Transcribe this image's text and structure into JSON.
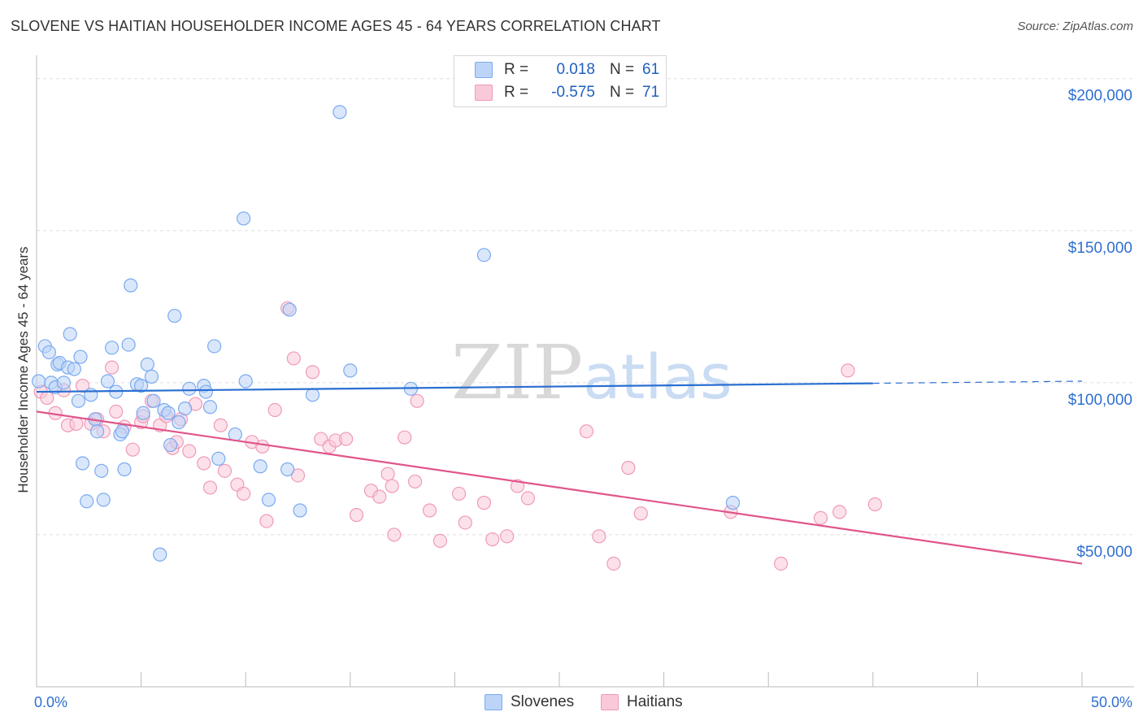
{
  "title": "SLOVENE VS HAITIAN HOUSEHOLDER INCOME AGES 45 - 64 YEARS CORRELATION CHART",
  "source": "Source: ZipAtlas.com",
  "watermark": {
    "zip": "ZIP",
    "atlas": "atlas"
  },
  "legend_top": {
    "rows": [
      {
        "r_label": "R =",
        "r_value": "0.018",
        "n_label": "N =",
        "n_value": "61",
        "color": "#7aaaf0",
        "fill": "#bcd4f7"
      },
      {
        "r_label": "R =",
        "r_value": "-0.575",
        "n_label": "N =",
        "n_value": "71",
        "color": "#f09ab8",
        "fill": "#f9c9d9"
      }
    ]
  },
  "legend_bottom": [
    {
      "label": "Slovenes",
      "color": "#7aaaf0",
      "fill": "#bcd4f7"
    },
    {
      "label": "Haitians",
      "color": "#f09ab8",
      "fill": "#f9c9d9"
    }
  ],
  "chart_data": {
    "type": "scatter",
    "title": "SLOVENE VS HAITIAN HOUSEHOLDER INCOME AGES 45 - 64 YEARS CORRELATION CHART",
    "xlabel": "",
    "ylabel": "Householder Income Ages 45 - 64 years",
    "xlim": [
      0,
      50
    ],
    "ylim": [
      0,
      205000
    ],
    "x_tick_labels": [
      "0.0%",
      "50.0%"
    ],
    "y_ticks": [
      50000,
      100000,
      150000,
      200000
    ],
    "y_tick_labels": [
      "$50,000",
      "$100,000",
      "$150,000",
      "$200,000"
    ],
    "grid": true,
    "legend_position": "top-center",
    "series": [
      {
        "name": "Slovenes",
        "color": "#7aaaf0",
        "fill": "#bcd4f7",
        "line_color": "#2a6fd1",
        "trend": {
          "x0": 0,
          "y0": 97000,
          "x1": 40,
          "y1": 99800,
          "dash_to_x": 50
        },
        "points": [
          [
            0.1,
            100500
          ],
          [
            0.4,
            112000
          ],
          [
            0.6,
            110000
          ],
          [
            0.7,
            100000
          ],
          [
            0.9,
            98500
          ],
          [
            1.0,
            106000
          ],
          [
            1.1,
            106500
          ],
          [
            1.3,
            100000
          ],
          [
            1.5,
            105000
          ],
          [
            1.6,
            116000
          ],
          [
            1.8,
            104500
          ],
          [
            2.0,
            94000
          ],
          [
            2.1,
            108500
          ],
          [
            2.2,
            73500
          ],
          [
            2.4,
            61000
          ],
          [
            2.6,
            96000
          ],
          [
            2.8,
            88000
          ],
          [
            2.9,
            84000
          ],
          [
            3.1,
            71000
          ],
          [
            3.2,
            61500
          ],
          [
            3.4,
            100500
          ],
          [
            3.6,
            111500
          ],
          [
            3.8,
            97000
          ],
          [
            4.0,
            83000
          ],
          [
            4.1,
            84000
          ],
          [
            4.2,
            71500
          ],
          [
            4.4,
            112500
          ],
          [
            4.5,
            132000
          ],
          [
            4.8,
            99500
          ],
          [
            5.0,
            99000
          ],
          [
            5.1,
            90000
          ],
          [
            5.3,
            106000
          ],
          [
            5.5,
            102000
          ],
          [
            5.6,
            94000
          ],
          [
            5.9,
            43500
          ],
          [
            6.1,
            91000
          ],
          [
            6.3,
            90000
          ],
          [
            6.4,
            79500
          ],
          [
            6.6,
            122000
          ],
          [
            6.8,
            87000
          ],
          [
            7.1,
            91500
          ],
          [
            7.3,
            98000
          ],
          [
            8.0,
            99000
          ],
          [
            8.1,
            97000
          ],
          [
            8.3,
            92000
          ],
          [
            8.5,
            112000
          ],
          [
            8.7,
            75000
          ],
          [
            9.5,
            83000
          ],
          [
            9.9,
            154000
          ],
          [
            10.0,
            100500
          ],
          [
            10.7,
            72500
          ],
          [
            11.1,
            61500
          ],
          [
            12.0,
            71500
          ],
          [
            12.1,
            124000
          ],
          [
            12.6,
            58000
          ],
          [
            13.2,
            96000
          ],
          [
            14.5,
            189000
          ],
          [
            15.0,
            104000
          ],
          [
            17.9,
            98000
          ],
          [
            21.4,
            142000
          ],
          [
            33.3,
            60500
          ]
        ]
      },
      {
        "name": "Haitians",
        "color": "#f09ab8",
        "fill": "#f9c9d9",
        "line_color": "#e0558a",
        "trend": {
          "x0": 0,
          "y0": 90500,
          "x1": 50,
          "y1": 40500
        },
        "points": [
          [
            0.2,
            97000
          ],
          [
            0.5,
            95000
          ],
          [
            0.9,
            90000
          ],
          [
            1.3,
            97500
          ],
          [
            1.5,
            86000
          ],
          [
            1.9,
            86500
          ],
          [
            2.2,
            99000
          ],
          [
            2.6,
            86500
          ],
          [
            2.9,
            88000
          ],
          [
            3.2,
            84000
          ],
          [
            3.6,
            105000
          ],
          [
            3.8,
            90500
          ],
          [
            4.2,
            85500
          ],
          [
            4.6,
            78000
          ],
          [
            5.0,
            87000
          ],
          [
            5.1,
            89000
          ],
          [
            5.5,
            94000
          ],
          [
            5.9,
            86000
          ],
          [
            6.2,
            89000
          ],
          [
            6.5,
            78500
          ],
          [
            6.7,
            80500
          ],
          [
            6.9,
            88000
          ],
          [
            7.3,
            77500
          ],
          [
            7.6,
            93000
          ],
          [
            8.0,
            73500
          ],
          [
            8.3,
            65500
          ],
          [
            8.8,
            86000
          ],
          [
            9.0,
            71000
          ],
          [
            9.6,
            66500
          ],
          [
            9.9,
            63500
          ],
          [
            10.3,
            80500
          ],
          [
            10.8,
            79000
          ],
          [
            11.0,
            54500
          ],
          [
            11.4,
            91000
          ],
          [
            12.0,
            124500
          ],
          [
            12.3,
            108000
          ],
          [
            12.5,
            69500
          ],
          [
            13.2,
            103500
          ],
          [
            13.6,
            81500
          ],
          [
            14.0,
            79000
          ],
          [
            14.3,
            81000
          ],
          [
            14.8,
            81500
          ],
          [
            15.3,
            56500
          ],
          [
            16.0,
            64500
          ],
          [
            16.4,
            62500
          ],
          [
            16.8,
            70000
          ],
          [
            17.0,
            66000
          ],
          [
            17.1,
            50000
          ],
          [
            17.6,
            82000
          ],
          [
            18.1,
            67500
          ],
          [
            18.2,
            94000
          ],
          [
            18.8,
            58000
          ],
          [
            19.3,
            48000
          ],
          [
            20.2,
            63500
          ],
          [
            20.5,
            54000
          ],
          [
            21.4,
            60500
          ],
          [
            21.8,
            48500
          ],
          [
            22.5,
            49500
          ],
          [
            23.0,
            66000
          ],
          [
            23.5,
            62000
          ],
          [
            26.3,
            84000
          ],
          [
            26.9,
            49500
          ],
          [
            27.6,
            40500
          ],
          [
            28.3,
            72000
          ],
          [
            28.9,
            57000
          ],
          [
            33.2,
            57500
          ],
          [
            35.6,
            40500
          ],
          [
            37.5,
            55500
          ],
          [
            38.4,
            57500
          ],
          [
            38.8,
            104000
          ],
          [
            40.1,
            60000
          ]
        ]
      }
    ]
  }
}
